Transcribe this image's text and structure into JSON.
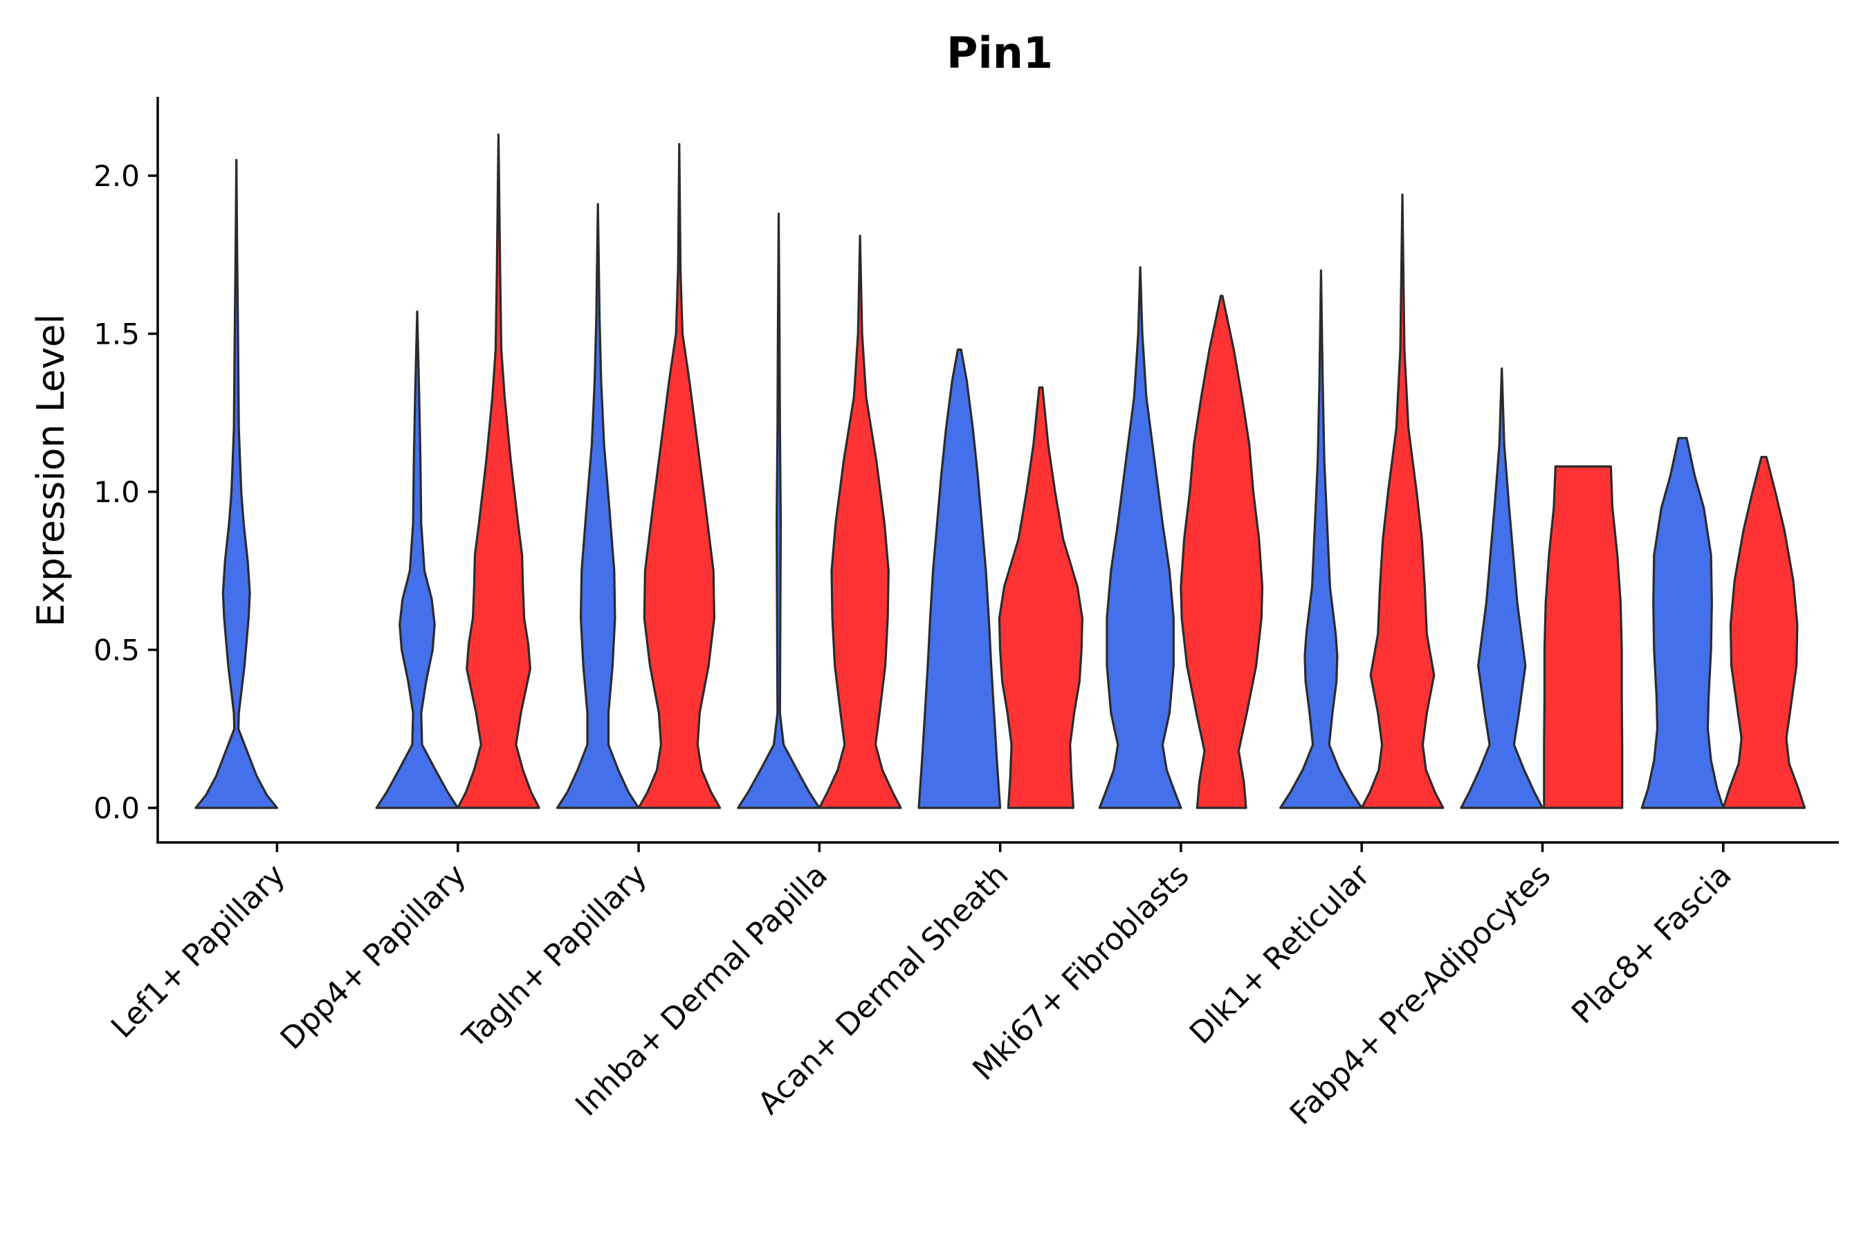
{
  "chart_data": {
    "type": "violin",
    "title": "Pin1",
    "xlabel": "",
    "ylabel": "Expression Level",
    "ylim": [
      -0.1,
      2.25
    ],
    "yticks": [
      "0.0",
      "0.5",
      "1.0",
      "1.5",
      "2.0"
    ],
    "ytick_values": [
      0,
      0.5,
      1.0,
      1.5,
      2.0
    ],
    "series_colors": [
      "#4570EB",
      "#FF3333"
    ],
    "categories": [
      "Lef1+ Papillary",
      "Dpp4+ Papillary",
      "Tagln+ Papillary",
      "Inhba+ Dermal Papilla",
      "Acan+ Dermal Sheath",
      "Mki67+ Fibroblasts",
      "Dlk1+ Reticular",
      "Fabp4+ Pre-Adipocytes",
      "Plac8+ Fascia"
    ],
    "violins": [
      {
        "category": "Lef1+ Papillary",
        "group": 0,
        "max": 2.05,
        "profile": [
          [
            0,
            1
          ],
          [
            0.04,
            0.75
          ],
          [
            0.1,
            0.5
          ],
          [
            0.2,
            0.2
          ],
          [
            0.25,
            0.05
          ],
          [
            0.3,
            0.06
          ],
          [
            0.45,
            0.2
          ],
          [
            0.6,
            0.3
          ],
          [
            0.68,
            0.33
          ],
          [
            0.78,
            0.28
          ],
          [
            0.9,
            0.18
          ],
          [
            1.0,
            0.12
          ],
          [
            1.2,
            0.06
          ],
          [
            1.5,
            0.04
          ],
          [
            1.75,
            0.02
          ],
          [
            2.05,
            0
          ]
        ]
      },
      {
        "category": "Dpp4+ Papillary",
        "group": 0,
        "max": 1.57,
        "profile": [
          [
            0,
            1
          ],
          [
            0.05,
            0.75
          ],
          [
            0.12,
            0.45
          ],
          [
            0.2,
            0.12
          ],
          [
            0.3,
            0.1
          ],
          [
            0.4,
            0.22
          ],
          [
            0.5,
            0.38
          ],
          [
            0.58,
            0.43
          ],
          [
            0.66,
            0.36
          ],
          [
            0.75,
            0.18
          ],
          [
            0.9,
            0.1
          ],
          [
            1.1,
            0.08
          ],
          [
            1.3,
            0.05
          ],
          [
            1.57,
            0
          ]
        ]
      },
      {
        "category": "Dpp4+ Papillary",
        "group": 1,
        "max": 2.13,
        "profile": [
          [
            0,
            1
          ],
          [
            0.05,
            0.8
          ],
          [
            0.12,
            0.6
          ],
          [
            0.2,
            0.43
          ],
          [
            0.3,
            0.55
          ],
          [
            0.44,
            0.78
          ],
          [
            0.52,
            0.73
          ],
          [
            0.6,
            0.63
          ],
          [
            0.7,
            0.6
          ],
          [
            0.8,
            0.58
          ],
          [
            0.9,
            0.48
          ],
          [
            1.1,
            0.3
          ],
          [
            1.3,
            0.15
          ],
          [
            1.45,
            0.07
          ],
          [
            1.7,
            0.04
          ],
          [
            2.13,
            0
          ]
        ]
      },
      {
        "category": "Tagln+ Papillary",
        "group": 0,
        "max": 1.91,
        "profile": [
          [
            0,
            1
          ],
          [
            0.05,
            0.75
          ],
          [
            0.12,
            0.5
          ],
          [
            0.2,
            0.26
          ],
          [
            0.3,
            0.26
          ],
          [
            0.45,
            0.36
          ],
          [
            0.6,
            0.42
          ],
          [
            0.75,
            0.4
          ],
          [
            0.95,
            0.28
          ],
          [
            1.15,
            0.15
          ],
          [
            1.35,
            0.08
          ],
          [
            1.55,
            0.04
          ],
          [
            1.91,
            0
          ]
        ]
      },
      {
        "category": "Tagln+ Papillary",
        "group": 1,
        "max": 2.1,
        "profile": [
          [
            0,
            1
          ],
          [
            0.05,
            0.78
          ],
          [
            0.12,
            0.55
          ],
          [
            0.2,
            0.45
          ],
          [
            0.3,
            0.5
          ],
          [
            0.45,
            0.72
          ],
          [
            0.6,
            0.86
          ],
          [
            0.75,
            0.84
          ],
          [
            0.95,
            0.65
          ],
          [
            1.15,
            0.45
          ],
          [
            1.35,
            0.25
          ],
          [
            1.5,
            0.08
          ],
          [
            1.7,
            0.03
          ],
          [
            2.1,
            0
          ]
        ]
      },
      {
        "category": "Inhba+ Dermal Papilla",
        "group": 0,
        "max": 1.88,
        "profile": [
          [
            0,
            1
          ],
          [
            0.05,
            0.75
          ],
          [
            0.12,
            0.45
          ],
          [
            0.2,
            0.12
          ],
          [
            0.3,
            0.03
          ],
          [
            0.6,
            0.04
          ],
          [
            0.9,
            0.05
          ],
          [
            1.2,
            0.03
          ],
          [
            1.5,
            0.02
          ],
          [
            1.88,
            0
          ]
        ]
      },
      {
        "category": "Inhba+ Dermal Papilla",
        "group": 1,
        "max": 1.81,
        "profile": [
          [
            0,
            1
          ],
          [
            0.05,
            0.8
          ],
          [
            0.12,
            0.55
          ],
          [
            0.2,
            0.38
          ],
          [
            0.3,
            0.48
          ],
          [
            0.45,
            0.62
          ],
          [
            0.6,
            0.68
          ],
          [
            0.75,
            0.7
          ],
          [
            0.9,
            0.6
          ],
          [
            1.1,
            0.4
          ],
          [
            1.3,
            0.15
          ],
          [
            1.5,
            0.05
          ],
          [
            1.81,
            0
          ]
        ]
      },
      {
        "category": "Acan+ Dermal Sheath",
        "group": 0,
        "max": 1.45,
        "profile": [
          [
            0,
            1
          ],
          [
            0.15,
            0.92
          ],
          [
            0.3,
            0.85
          ],
          [
            0.45,
            0.78
          ],
          [
            0.6,
            0.72
          ],
          [
            0.75,
            0.65
          ],
          [
            0.9,
            0.55
          ],
          [
            1.05,
            0.45
          ],
          [
            1.2,
            0.33
          ],
          [
            1.35,
            0.18
          ],
          [
            1.45,
            0.04
          ]
        ]
      },
      {
        "category": "Acan+ Dermal Sheath",
        "group": 1,
        "max": 1.33,
        "profile": [
          [
            0,
            0.8
          ],
          [
            0.1,
            0.75
          ],
          [
            0.2,
            0.72
          ],
          [
            0.3,
            0.82
          ],
          [
            0.4,
            0.95
          ],
          [
            0.5,
            1.0
          ],
          [
            0.6,
            1.02
          ],
          [
            0.7,
            0.9
          ],
          [
            0.85,
            0.55
          ],
          [
            1.0,
            0.35
          ],
          [
            1.15,
            0.18
          ],
          [
            1.33,
            0.04
          ]
        ]
      },
      {
        "category": "Mki67+ Fibroblasts",
        "group": 0,
        "max": 1.71,
        "profile": [
          [
            0,
            1
          ],
          [
            0.05,
            0.85
          ],
          [
            0.12,
            0.65
          ],
          [
            0.2,
            0.55
          ],
          [
            0.3,
            0.72
          ],
          [
            0.45,
            0.82
          ],
          [
            0.6,
            0.82
          ],
          [
            0.75,
            0.72
          ],
          [
            0.9,
            0.55
          ],
          [
            1.1,
            0.35
          ],
          [
            1.3,
            0.15
          ],
          [
            1.5,
            0.05
          ],
          [
            1.71,
            0
          ]
        ]
      },
      {
        "category": "Mki67+ Fibroblasts",
        "group": 1,
        "max": 1.62,
        "profile": [
          [
            0,
            0.6
          ],
          [
            0.08,
            0.55
          ],
          [
            0.18,
            0.42
          ],
          [
            0.3,
            0.62
          ],
          [
            0.45,
            0.85
          ],
          [
            0.6,
            0.98
          ],
          [
            0.7,
            1.0
          ],
          [
            0.85,
            0.92
          ],
          [
            1.0,
            0.78
          ],
          [
            1.15,
            0.68
          ],
          [
            1.3,
            0.5
          ],
          [
            1.45,
            0.3
          ],
          [
            1.62,
            0.02
          ]
        ]
      },
      {
        "category": "Dlk1+ Reticular",
        "group": 0,
        "max": 1.7,
        "profile": [
          [
            0,
            1
          ],
          [
            0.05,
            0.75
          ],
          [
            0.12,
            0.45
          ],
          [
            0.2,
            0.2
          ],
          [
            0.3,
            0.28
          ],
          [
            0.4,
            0.38
          ],
          [
            0.48,
            0.4
          ],
          [
            0.55,
            0.36
          ],
          [
            0.7,
            0.22
          ],
          [
            0.9,
            0.15
          ],
          [
            1.1,
            0.08
          ],
          [
            1.35,
            0.04
          ],
          [
            1.7,
            0
          ]
        ]
      },
      {
        "category": "Dlk1+ Reticular",
        "group": 1,
        "max": 1.94,
        "profile": [
          [
            0,
            1
          ],
          [
            0.05,
            0.8
          ],
          [
            0.12,
            0.58
          ],
          [
            0.2,
            0.5
          ],
          [
            0.3,
            0.6
          ],
          [
            0.42,
            0.78
          ],
          [
            0.55,
            0.6
          ],
          [
            0.7,
            0.55
          ],
          [
            0.85,
            0.48
          ],
          [
            1.0,
            0.35
          ],
          [
            1.2,
            0.15
          ],
          [
            1.45,
            0.05
          ],
          [
            1.94,
            0
          ]
        ]
      },
      {
        "category": "Fabp4+ Pre-Adipocytes",
        "group": 0,
        "max": 1.39,
        "profile": [
          [
            0,
            1
          ],
          [
            0.05,
            0.8
          ],
          [
            0.12,
            0.55
          ],
          [
            0.2,
            0.3
          ],
          [
            0.3,
            0.42
          ],
          [
            0.45,
            0.58
          ],
          [
            0.55,
            0.48
          ],
          [
            0.65,
            0.38
          ],
          [
            0.8,
            0.28
          ],
          [
            0.95,
            0.18
          ],
          [
            1.15,
            0.06
          ],
          [
            1.39,
            0
          ]
        ]
      },
      {
        "category": "Fabp4+ Pre-Adipocytes",
        "group": 1,
        "max": 1.08,
        "profile": [
          [
            0,
            0.96
          ],
          [
            0.2,
            0.96
          ],
          [
            0.35,
            0.95
          ],
          [
            0.5,
            0.95
          ],
          [
            0.65,
            0.92
          ],
          [
            0.8,
            0.84
          ],
          [
            0.95,
            0.72
          ],
          [
            1.08,
            0.68
          ]
        ]
      },
      {
        "category": "Plac8+ Fascia",
        "group": 0,
        "max": 1.17,
        "profile": [
          [
            0,
            1
          ],
          [
            0.06,
            0.85
          ],
          [
            0.15,
            0.7
          ],
          [
            0.25,
            0.62
          ],
          [
            0.35,
            0.64
          ],
          [
            0.5,
            0.7
          ],
          [
            0.65,
            0.72
          ],
          [
            0.8,
            0.7
          ],
          [
            0.95,
            0.52
          ],
          [
            1.05,
            0.3
          ],
          [
            1.17,
            0.1
          ]
        ]
      },
      {
        "category": "Plac8+ Fascia",
        "group": 1,
        "max": 1.11,
        "profile": [
          [
            0,
            1
          ],
          [
            0.06,
            0.85
          ],
          [
            0.14,
            0.62
          ],
          [
            0.22,
            0.55
          ],
          [
            0.32,
            0.66
          ],
          [
            0.45,
            0.8
          ],
          [
            0.58,
            0.82
          ],
          [
            0.72,
            0.72
          ],
          [
            0.88,
            0.5
          ],
          [
            1.0,
            0.28
          ],
          [
            1.11,
            0.06
          ]
        ]
      }
    ]
  }
}
